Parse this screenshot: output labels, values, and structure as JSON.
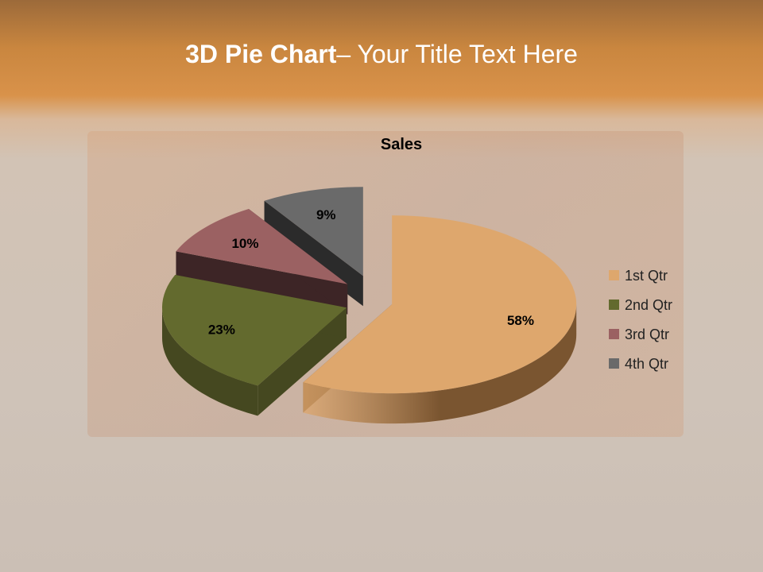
{
  "slide": {
    "title_bold": "3D Pie Chart",
    "title_rest": "– Your Title Text Here"
  },
  "chart_data": {
    "type": "pie",
    "variant": "3d-exploded",
    "title": "Sales",
    "categories": [
      "1st Qtr",
      "2nd Qtr",
      "3rd Qtr",
      "4th Qtr"
    ],
    "values": [
      58,
      23,
      10,
      9
    ],
    "data_labels": [
      "58%",
      "23%",
      "10%",
      "9%"
    ],
    "colors": [
      "#dea76d",
      "#636a2e",
      "#9b6162",
      "#6a6a6a"
    ],
    "side_colors": [
      "#7a5530",
      "#454820",
      "#3d2526",
      "#2b2b2b"
    ],
    "legend_placement": "right"
  }
}
